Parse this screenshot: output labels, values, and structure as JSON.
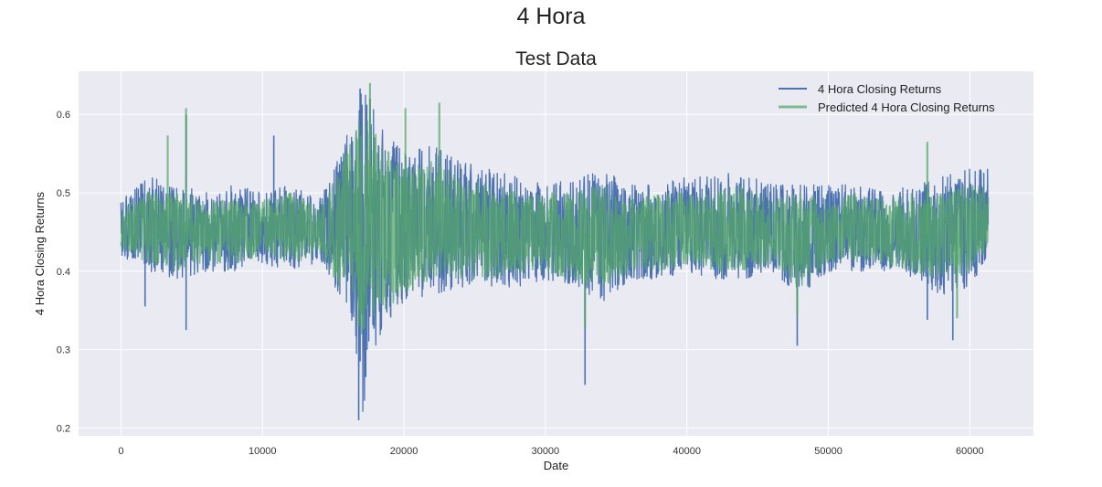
{
  "figure": {
    "suptitle": "4 Hora"
  },
  "chart_data": {
    "type": "line",
    "title": "Test Data",
    "xlabel": "Date",
    "ylabel": "4 Hora Closing Returns",
    "xlim": [
      -3000,
      64500
    ],
    "ylim": [
      0.19,
      0.655
    ],
    "xticks": [
      0,
      10000,
      20000,
      30000,
      40000,
      50000,
      60000
    ],
    "xtick_labels": [
      "0",
      "10000",
      "20000",
      "30000",
      "40000",
      "50000",
      "60000"
    ],
    "yticks": [
      0.2,
      0.3,
      0.4,
      0.5,
      0.6
    ],
    "ytick_labels": [
      "0.2",
      "0.3",
      "0.4",
      "0.5",
      "0.6"
    ],
    "grid": true,
    "legend_position": "top-right",
    "series": [
      {
        "name": "4 Hora Closing Returns",
        "color": "#4c72b0",
        "envelope": {
          "x": [
            0,
            2000,
            4000,
            6000,
            8000,
            10000,
            12000,
            14000,
            15500,
            16500,
            17000,
            17500,
            18500,
            20000,
            22000,
            24000,
            26000,
            28000,
            30000,
            32000,
            34000,
            36000,
            38000,
            40000,
            42000,
            44000,
            46000,
            48000,
            50000,
            52000,
            54000,
            56000,
            58000,
            60000,
            61300
          ],
          "upper": [
            0.49,
            0.52,
            0.51,
            0.5,
            0.51,
            0.5,
            0.51,
            0.49,
            0.55,
            0.6,
            0.63,
            0.62,
            0.58,
            0.55,
            0.56,
            0.54,
            0.53,
            0.52,
            0.51,
            0.52,
            0.53,
            0.51,
            0.51,
            0.52,
            0.52,
            0.53,
            0.51,
            0.51,
            0.51,
            0.51,
            0.5,
            0.51,
            0.52,
            0.53,
            0.53
          ],
          "lower": [
            0.42,
            0.4,
            0.39,
            0.4,
            0.4,
            0.41,
            0.4,
            0.41,
            0.37,
            0.33,
            0.21,
            0.27,
            0.33,
            0.36,
            0.37,
            0.38,
            0.38,
            0.38,
            0.39,
            0.38,
            0.36,
            0.39,
            0.39,
            0.4,
            0.39,
            0.39,
            0.4,
            0.37,
            0.4,
            0.4,
            0.4,
            0.39,
            0.37,
            0.38,
            0.42
          ]
        },
        "spikes": [
          [
            4600,
            0.325
          ],
          [
            1700,
            0.355
          ],
          [
            16800,
            0.21
          ],
          [
            17300,
            0.265
          ],
          [
            17600,
            0.62
          ],
          [
            16900,
            0.633
          ],
          [
            32800,
            0.255
          ],
          [
            47800,
            0.305
          ],
          [
            58800,
            0.312
          ],
          [
            57000,
            0.338
          ],
          [
            10800,
            0.573
          ],
          [
            4600,
            0.6
          ]
        ]
      },
      {
        "name": "Predicted 4 Hora Closing Returns",
        "color": "#55a868",
        "envelope": {
          "x": [
            0,
            2000,
            4000,
            6000,
            8000,
            10000,
            12000,
            14000,
            15500,
            16500,
            17000,
            17500,
            18500,
            20000,
            22000,
            24000,
            26000,
            28000,
            30000,
            32000,
            34000,
            36000,
            38000,
            40000,
            42000,
            44000,
            46000,
            48000,
            50000,
            52000,
            54000,
            56000,
            58000,
            60000,
            61300
          ],
          "upper": [
            0.48,
            0.5,
            0.5,
            0.49,
            0.49,
            0.49,
            0.5,
            0.48,
            0.53,
            0.58,
            0.6,
            0.59,
            0.56,
            0.53,
            0.54,
            0.52,
            0.51,
            0.5,
            0.5,
            0.5,
            0.51,
            0.49,
            0.5,
            0.5,
            0.5,
            0.51,
            0.49,
            0.5,
            0.49,
            0.5,
            0.49,
            0.5,
            0.5,
            0.51,
            0.51
          ],
          "lower": [
            0.43,
            0.41,
            0.4,
            0.41,
            0.41,
            0.42,
            0.41,
            0.42,
            0.38,
            0.35,
            0.32,
            0.33,
            0.35,
            0.37,
            0.39,
            0.39,
            0.39,
            0.4,
            0.4,
            0.39,
            0.38,
            0.4,
            0.4,
            0.41,
            0.4,
            0.4,
            0.41,
            0.38,
            0.41,
            0.41,
            0.41,
            0.4,
            0.39,
            0.4,
            0.43
          ]
        },
        "spikes": [
          [
            3300,
            0.573
          ],
          [
            4600,
            0.608
          ],
          [
            17600,
            0.64
          ],
          [
            20100,
            0.608
          ],
          [
            22500,
            0.615
          ],
          [
            32800,
            0.328
          ],
          [
            47800,
            0.345
          ],
          [
            57000,
            0.565
          ],
          [
            59100,
            0.34
          ],
          [
            16800,
            0.33
          ]
        ]
      }
    ]
  }
}
